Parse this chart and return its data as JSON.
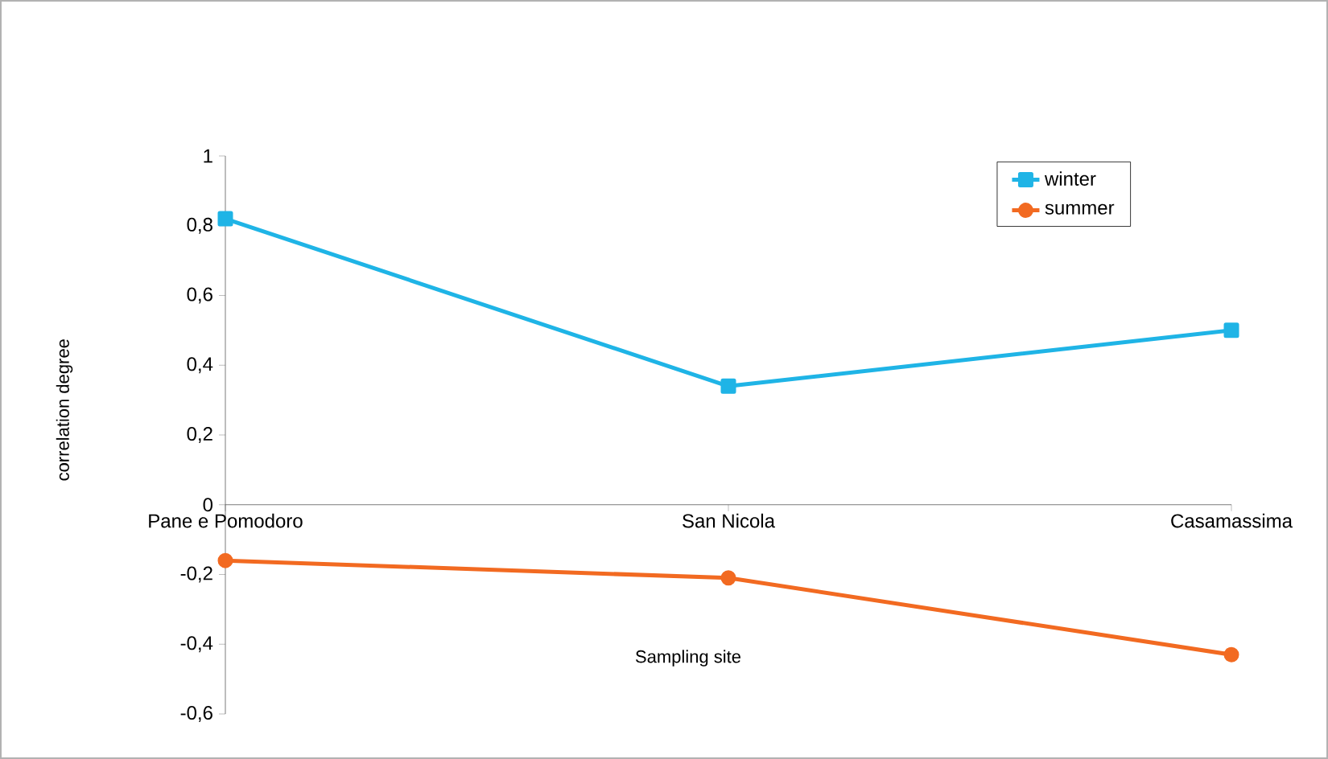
{
  "chart_data": {
    "type": "line",
    "xlabel": "Sampling site",
    "ylabel": "correlation degree",
    "categories": [
      "Pane e Pomodoro",
      "San Nicola",
      "Casamassima"
    ],
    "series": [
      {
        "name": "winter",
        "color": "#1fb4e6",
        "marker": "square",
        "values": [
          0.82,
          0.34,
          0.5
        ]
      },
      {
        "name": "summer",
        "color": "#f26a21",
        "marker": "circle",
        "values": [
          -0.16,
          -0.21,
          -0.43
        ]
      }
    ],
    "ylim": [
      -0.6,
      1
    ],
    "yticks": [
      {
        "value": -0.6,
        "label": "-0,6"
      },
      {
        "value": -0.4,
        "label": "-0,4"
      },
      {
        "value": -0.2,
        "label": "-0,2"
      },
      0,
      {
        "value": 0.2,
        "label": "0,2"
      },
      {
        "value": 0.4,
        "label": "0,4"
      },
      {
        "value": 0.6,
        "label": "0,6"
      },
      {
        "value": 0.8,
        "label": "0,8"
      },
      1
    ],
    "grid": false,
    "legend": "top right",
    "line_style": "solid"
  }
}
